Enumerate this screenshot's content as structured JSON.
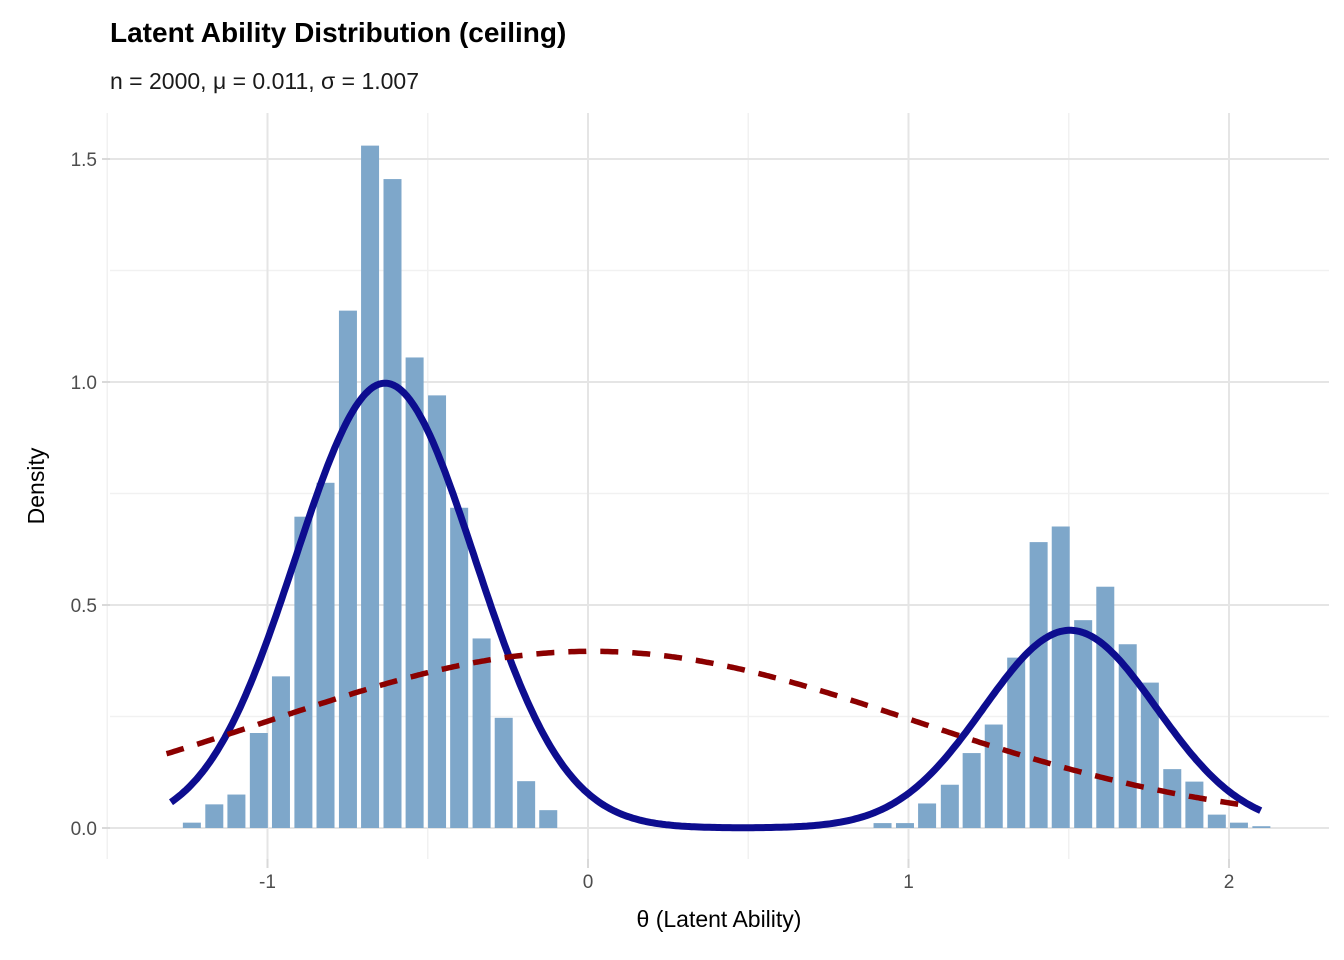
{
  "title": "Latent Ability Distribution (ceiling)",
  "subtitle": "n = 2000, μ = 0.011, σ = 1.007",
  "chart_data": {
    "type": "bar",
    "subtype": "histogram-with-density-overlays",
    "title": "Latent Ability Distribution (ceiling)",
    "subtitle": "n = 2000, μ = 0.011, σ = 1.007",
    "xlabel": "θ (Latent Ability)",
    "ylabel": "Density",
    "xlim": [
      -1.49,
      2.31
    ],
    "ylim": [
      -0.07,
      1.6
    ],
    "x_ticks": [
      -1,
      0,
      1,
      2
    ],
    "x_tick_labels": [
      "-1",
      "0",
      "1",
      "2"
    ],
    "x_minor_ticks": [
      -1.5,
      -0.5,
      0.5,
      1.5
    ],
    "y_ticks": [
      0.0,
      0.5,
      1.0,
      1.5
    ],
    "y_tick_labels": [
      "0.0",
      "0.5",
      "1.0",
      "1.5"
    ],
    "y_minor_ticks": [
      0.25,
      0.75,
      1.25
    ],
    "grid": true,
    "legend": "none",
    "binwidth": 0.0695,
    "histogram": [
      {
        "theta": -1.236,
        "density": 0.012
      },
      {
        "theta": -1.166,
        "density": 0.053
      },
      {
        "theta": -1.097,
        "density": 0.075
      },
      {
        "theta": -1.027,
        "density": 0.213
      },
      {
        "theta": -0.958,
        "density": 0.34
      },
      {
        "theta": -0.888,
        "density": 0.698
      },
      {
        "theta": -0.819,
        "density": 0.774
      },
      {
        "theta": -0.749,
        "density": 1.16
      },
      {
        "theta": -0.68,
        "density": 1.53
      },
      {
        "theta": -0.61,
        "density": 1.455
      },
      {
        "theta": -0.541,
        "density": 1.055
      },
      {
        "theta": -0.471,
        "density": 0.97
      },
      {
        "theta": -0.402,
        "density": 0.718
      },
      {
        "theta": -0.332,
        "density": 0.425
      },
      {
        "theta": -0.263,
        "density": 0.247
      },
      {
        "theta": -0.193,
        "density": 0.105
      },
      {
        "theta": -0.124,
        "density": 0.04
      },
      {
        "theta": 0.919,
        "density": 0.011
      },
      {
        "theta": 0.989,
        "density": 0.011
      },
      {
        "theta": 1.058,
        "density": 0.055
      },
      {
        "theta": 1.129,
        "density": 0.097
      },
      {
        "theta": 1.197,
        "density": 0.168
      },
      {
        "theta": 1.266,
        "density": 0.232
      },
      {
        "theta": 1.336,
        "density": 0.382
      },
      {
        "theta": 1.406,
        "density": 0.641
      },
      {
        "theta": 1.475,
        "density": 0.676
      },
      {
        "theta": 1.545,
        "density": 0.466
      },
      {
        "theta": 1.614,
        "density": 0.541
      },
      {
        "theta": 1.684,
        "density": 0.412
      },
      {
        "theta": 1.753,
        "density": 0.326
      },
      {
        "theta": 1.823,
        "density": 0.132
      },
      {
        "theta": 1.892,
        "density": 0.104
      },
      {
        "theta": 1.962,
        "density": 0.03
      },
      {
        "theta": 2.031,
        "density": 0.012
      },
      {
        "theta": 2.101,
        "density": 0.004
      }
    ],
    "curves": [
      {
        "name": "kde-density",
        "style": "solid",
        "color": "#0D0D8F",
        "width": 7,
        "model": "mixture",
        "components": [
          {
            "weight": 0.7,
            "mean": -0.633,
            "sd": 0.28
          },
          {
            "weight": 0.3,
            "mean": 1.504,
            "sd": 0.27
          }
        ],
        "peaks": [
          {
            "theta": -0.633,
            "density": 0.997
          },
          {
            "theta": 1.504,
            "density": 0.443
          }
        ],
        "range": [
          -1.301,
          2.103
        ]
      },
      {
        "name": "normal-fit",
        "style": "dashed",
        "color": "#8B0000",
        "width": 5.5,
        "model": "normal",
        "mean": 0.011,
        "sd": 1.007,
        "peaks": [
          {
            "theta": 0.011,
            "density": 0.396
          }
        ],
        "range": [
          -1.315,
          2.068
        ]
      }
    ],
    "colors": {
      "bar_fill": "#7EA7CA",
      "kde_line": "#0D0D8F",
      "normal_line": "#8B0000",
      "grid_major": "#E5E5E5",
      "grid_minor": "#F1F1F1",
      "tick_mark": "#D9D9D9",
      "tick_text": "#4D4D4D",
      "title_text": "#000000",
      "background": "#FFFFFF"
    }
  }
}
